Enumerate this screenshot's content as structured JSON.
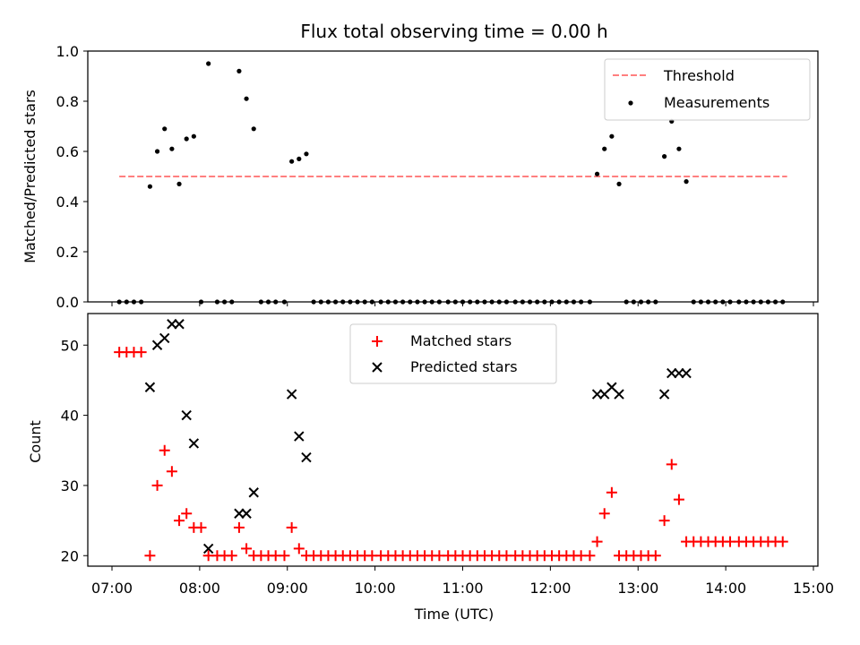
{
  "chart_data": [
    {
      "type": "scatter",
      "title": "Flux total observing time = 0.00 h",
      "ylabel": "Matched/Predicted stars",
      "xlabel": "",
      "ylim": [
        0,
        1
      ],
      "yticks": [
        "0.0",
        "0.2",
        "0.4",
        "0.6",
        "0.8",
        "1.0"
      ],
      "threshold": {
        "name": "Threshold",
        "value": 0.5,
        "x_start": "07:05",
        "x_end": "14:42",
        "color": "#ff7f7f"
      },
      "series": [
        {
          "name": "Measurements",
          "color": "#000000",
          "x": [
            "07:05",
            "07:10",
            "07:15",
            "07:20",
            "07:26",
            "07:31",
            "07:36",
            "07:41",
            "07:46",
            "07:51",
            "07:56",
            "08:01",
            "08:06",
            "08:12",
            "08:17",
            "08:22",
            "08:27",
            "08:32",
            "08:37",
            "08:42",
            "08:47",
            "08:52",
            "08:58",
            "09:03",
            "09:08",
            "09:13",
            "09:18",
            "09:23",
            "09:28",
            "09:33",
            "09:38",
            "09:43",
            "09:48",
            "09:53",
            "09:58",
            "10:04",
            "10:09",
            "10:14",
            "10:19",
            "10:24",
            "10:29",
            "10:34",
            "10:39",
            "10:44",
            "10:50",
            "10:55",
            "11:00",
            "11:05",
            "11:10",
            "11:15",
            "11:20",
            "11:25",
            "11:30",
            "11:36",
            "11:41",
            "11:46",
            "11:51",
            "11:56",
            "12:01",
            "12:06",
            "12:11",
            "12:16",
            "12:21",
            "12:27",
            "12:32",
            "12:37",
            "12:42",
            "12:47",
            "12:52",
            "12:57",
            "13:02",
            "13:07",
            "13:12",
            "13:18",
            "13:23",
            "13:28",
            "13:33",
            "13:38",
            "13:43",
            "13:48",
            "13:53",
            "13:58",
            "14:03",
            "14:09",
            "14:14",
            "14:19",
            "14:24",
            "14:29",
            "14:34",
            "14:39"
          ],
          "y": [
            0,
            0,
            0,
            0,
            0.46,
            0.6,
            0.69,
            0.61,
            0.47,
            0.65,
            0.66,
            0,
            0.95,
            0,
            0,
            0,
            0.92,
            0.81,
            0.69,
            0,
            0,
            0,
            0,
            0.56,
            0.57,
            0.59,
            0,
            0,
            0,
            0,
            0,
            0,
            0,
            0,
            0,
            0,
            0,
            0,
            0,
            0,
            0,
            0,
            0,
            0,
            0,
            0,
            0,
            0,
            0,
            0,
            0,
            0,
            0,
            0,
            0,
            0,
            0,
            0,
            0,
            0,
            0,
            0,
            0,
            0,
            0.51,
            0.61,
            0.66,
            0.47,
            0,
            0,
            0,
            0,
            0,
            0.58,
            0.72,
            0.61,
            0.48,
            0,
            0,
            0,
            0,
            0,
            0,
            0,
            0,
            0,
            0,
            0,
            0,
            0
          ]
        }
      ],
      "legend": {
        "position": "top-right",
        "entries": [
          "Threshold",
          "Measurements"
        ]
      }
    },
    {
      "type": "scatter",
      "title": "",
      "ylabel": "Count",
      "xlabel": "Time (UTC)",
      "ylim": [
        18.5,
        54.5
      ],
      "yticks": [
        "20",
        "30",
        "40",
        "50"
      ],
      "xticks": [
        "07:00",
        "08:00",
        "09:00",
        "10:00",
        "11:00",
        "12:00",
        "13:00",
        "14:00",
        "15:00"
      ],
      "series": [
        {
          "name": "Matched stars",
          "marker": "plus",
          "color": "#ff0000",
          "x": [
            "07:05",
            "07:10",
            "07:15",
            "07:20",
            "07:26",
            "07:31",
            "07:36",
            "07:41",
            "07:46",
            "07:51",
            "07:56",
            "08:01",
            "08:06",
            "08:12",
            "08:17",
            "08:22",
            "08:27",
            "08:32",
            "08:37",
            "08:42",
            "08:47",
            "08:52",
            "08:58",
            "09:03",
            "09:08",
            "09:13",
            "09:18",
            "09:23",
            "09:28",
            "09:33",
            "09:38",
            "09:43",
            "09:48",
            "09:53",
            "09:58",
            "10:04",
            "10:09",
            "10:14",
            "10:19",
            "10:24",
            "10:29",
            "10:34",
            "10:39",
            "10:44",
            "10:50",
            "10:55",
            "11:00",
            "11:05",
            "11:10",
            "11:15",
            "11:20",
            "11:25",
            "11:30",
            "11:36",
            "11:41",
            "11:46",
            "11:51",
            "11:56",
            "12:01",
            "12:06",
            "12:11",
            "12:16",
            "12:21",
            "12:27",
            "12:32",
            "12:37",
            "12:42",
            "12:47",
            "12:52",
            "12:57",
            "13:02",
            "13:07",
            "13:12",
            "13:18",
            "13:23",
            "13:28",
            "13:33",
            "13:38",
            "13:43",
            "13:48",
            "13:53",
            "13:58",
            "14:03",
            "14:09",
            "14:14",
            "14:19",
            "14:24",
            "14:29",
            "14:34",
            "14:39"
          ],
          "y": [
            49,
            49,
            49,
            49,
            20,
            30,
            35,
            32,
            25,
            26,
            24,
            24,
            20,
            20,
            20,
            20,
            24,
            21,
            20,
            20,
            20,
            20,
            20,
            24,
            21,
            20,
            20,
            20,
            20,
            20,
            20,
            20,
            20,
            20,
            20,
            20,
            20,
            20,
            20,
            20,
            20,
            20,
            20,
            20,
            20,
            20,
            20,
            20,
            20,
            20,
            20,
            20,
            20,
            20,
            20,
            20,
            20,
            20,
            20,
            20,
            20,
            20,
            20,
            20,
            22,
            26,
            29,
            20,
            20,
            20,
            20,
            20,
            20,
            25,
            33,
            28,
            22,
            22,
            22,
            22,
            22,
            22,
            22,
            22,
            22,
            22,
            22,
            22,
            22,
            22
          ]
        },
        {
          "name": "Predicted stars",
          "marker": "x",
          "color": "#000000",
          "x": [
            "07:26",
            "07:31",
            "07:36",
            "07:41",
            "07:46",
            "07:51",
            "07:56",
            "08:06",
            "08:27",
            "08:32",
            "08:37",
            "09:03",
            "09:08",
            "09:13",
            "12:32",
            "12:37",
            "12:42",
            "12:47",
            "13:18",
            "13:23",
            "13:28",
            "13:33"
          ],
          "y": [
            44,
            50,
            51,
            53,
            53,
            40,
            36,
            21,
            26,
            26,
            29,
            43,
            37,
            34,
            43,
            43,
            44,
            43,
            43,
            46,
            46,
            46
          ]
        }
      ],
      "legend": {
        "position": "upper-center",
        "entries": [
          "Matched stars",
          "Predicted stars"
        ]
      }
    }
  ]
}
